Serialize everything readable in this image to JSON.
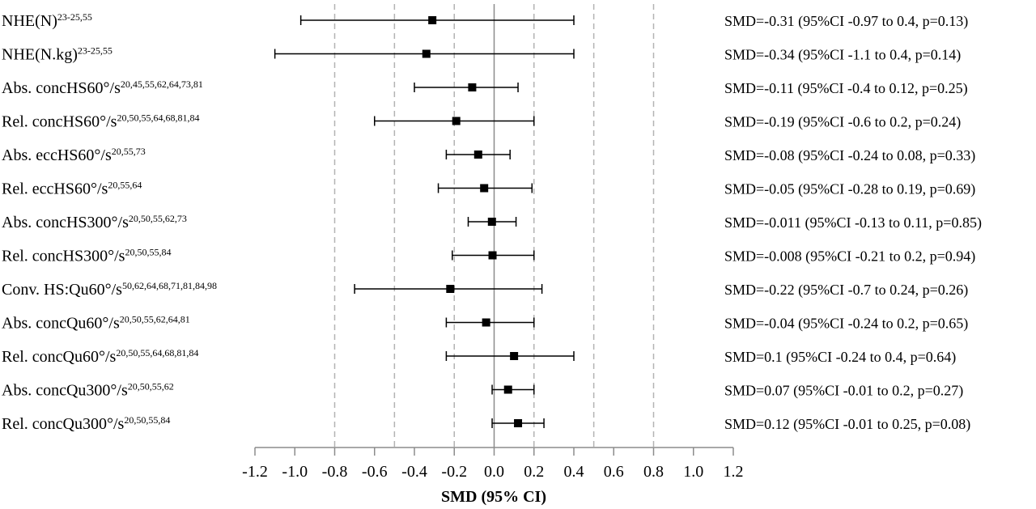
{
  "chart_data": {
    "type": "forest",
    "xlabel": "SMD (95% CI)",
    "xlim": [
      -1.2,
      1.2
    ],
    "xticks": [
      "-1.2",
      "-1.0",
      "-0.8",
      "-0.6",
      "-0.4",
      "-0.2",
      "0.0",
      "0.2",
      "0.4",
      "0.6",
      "0.8",
      "1.0",
      "1.2"
    ],
    "reference_lines": [
      -0.8,
      -0.5,
      -0.2,
      0.2,
      0.5,
      0.8
    ],
    "null_line": 0,
    "marker_color": "#000000",
    "rows": [
      {
        "label": "NHE(N)",
        "refs": "23-25,55",
        "smd": -0.31,
        "lower": -0.97,
        "upper": 0.4,
        "stat": "SMD=-0.31 (95%CI -0.97 to 0.4, p=0.13)"
      },
      {
        "label": "NHE(N.kg)",
        "refs": "23-25,55",
        "smd": -0.34,
        "lower": -1.1,
        "upper": 0.4,
        "stat": "SMD=-0.34 (95%CI -1.1 to 0.4, p=0.14)"
      },
      {
        "label": "Abs. concHS60°/s",
        "refs": "20,45,55,62,64,73,81",
        "smd": -0.11,
        "lower": -0.4,
        "upper": 0.12,
        "stat": "SMD=-0.11 (95%CI -0.4 to 0.12, p=0.25)"
      },
      {
        "label": "Rel. concHS60°/s",
        "refs": "20,50,55,64,68,81,84",
        "smd": -0.19,
        "lower": -0.6,
        "upper": 0.2,
        "stat": "SMD=-0.19 (95%CI -0.6 to 0.2, p=0.24)"
      },
      {
        "label": "Abs. eccHS60°/s",
        "refs": "20,55,73",
        "smd": -0.08,
        "lower": -0.24,
        "upper": 0.08,
        "stat": "SMD=-0.08 (95%CI -0.24 to 0.08, p=0.33)"
      },
      {
        "label": "Rel. eccHS60°/s",
        "refs": "20,55,64",
        "smd": -0.05,
        "lower": -0.28,
        "upper": 0.19,
        "stat": "SMD=-0.05 (95%CI -0.28 to 0.19, p=0.69)"
      },
      {
        "label": "Abs. concHS300°/s",
        "refs": "20,50,55,62,73",
        "smd": -0.011,
        "lower": -0.13,
        "upper": 0.11,
        "stat": "SMD=-0.011 (95%CI -0.13 to 0.11, p=0.85)"
      },
      {
        "label": "Rel. concHS300°/s",
        "refs": "20,50,55,84",
        "smd": -0.008,
        "lower": -0.21,
        "upper": 0.2,
        "stat": "SMD=-0.008 (95%CI -0.21 to 0.2, p=0.94)"
      },
      {
        "label": "Conv. HS:Qu60°/s",
        "refs": "50,62,64,68,71,81,84,98",
        "smd": -0.22,
        "lower": -0.7,
        "upper": 0.24,
        "stat": "SMD=-0.22 (95%CI -0.7 to 0.24, p=0.26)"
      },
      {
        "label": "Abs. concQu60°/s",
        "refs": "20,50,55,62,64,81",
        "smd": -0.04,
        "lower": -0.24,
        "upper": 0.2,
        "stat": "SMD=-0.04 (95%CI -0.24 to 0.2, p=0.65)"
      },
      {
        "label": "Rel. concQu60°/s",
        "refs": "20,50,55,64,68,81,84",
        "smd": 0.1,
        "lower": -0.24,
        "upper": 0.4,
        "stat": "SMD=0.1 (95%CI -0.24 to 0.4, p=0.64)"
      },
      {
        "label": "Abs. concQu300°/s",
        "refs": "20,50,55,62",
        "smd": 0.07,
        "lower": -0.01,
        "upper": 0.2,
        "stat": "SMD=0.07 (95%CI -0.01 to 0.2, p=0.27)"
      },
      {
        "label": "Rel. concQu300°/s",
        "refs": "20,50,55,84",
        "smd": 0.12,
        "lower": -0.01,
        "upper": 0.25,
        "stat": "SMD=0.12 (95%CI -0.01 to 0.25, p=0.08)"
      }
    ]
  }
}
